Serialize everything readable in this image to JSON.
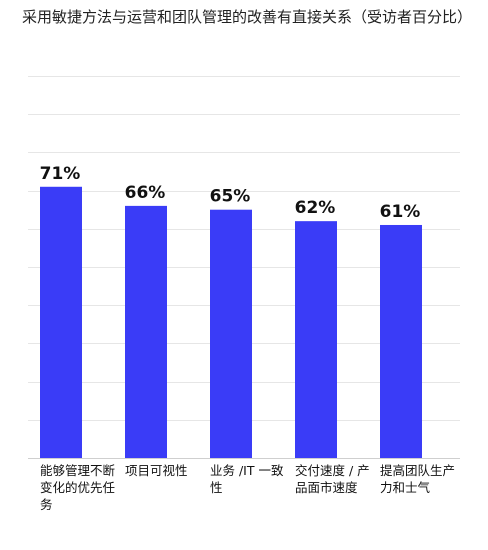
{
  "chart_data": {
    "type": "bar",
    "title": "采用敏捷方法与运营和团队管理的改善有直接关系（受访者百分比）",
    "xlabel": "",
    "ylabel": "",
    "ylim": [
      0,
      100
    ],
    "grid": true,
    "categories": [
      "能够管理不断变化的优先任务",
      "项目可视性",
      "业务 /IT 一致性",
      "交付速度 / 产品面市速度",
      "提高团队生产力和士气"
    ],
    "values": [
      71,
      66,
      65,
      62,
      61
    ],
    "value_labels": [
      "71%",
      "66%",
      "65%",
      "62%",
      "61%"
    ],
    "bar_color": "#3a3cf7",
    "grid_color": "#e6e6e6"
  }
}
